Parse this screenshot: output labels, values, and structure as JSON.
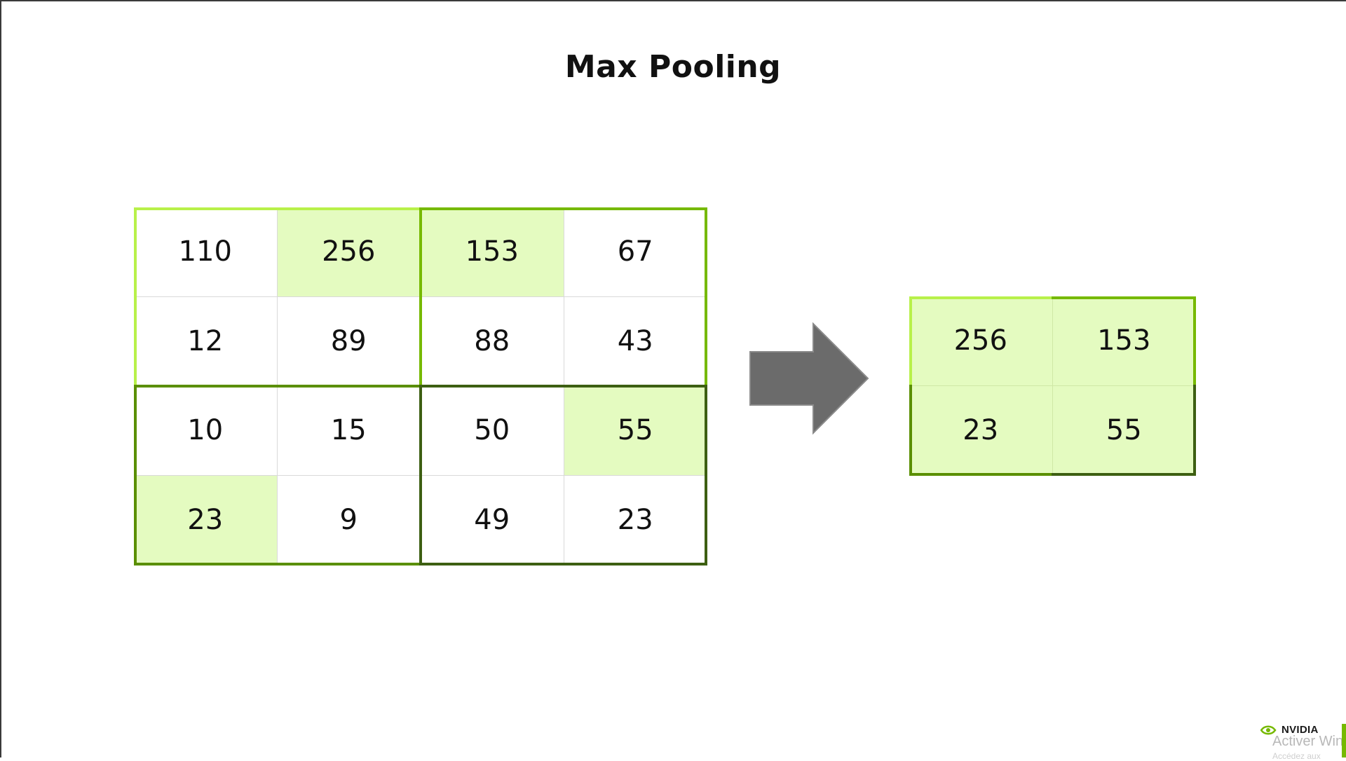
{
  "title": "Max Pooling",
  "input": {
    "rows": [
      [
        "110",
        "256",
        "153",
        "67"
      ],
      [
        "12",
        "89",
        "88",
        "43"
      ],
      [
        "10",
        "15",
        "50",
        "55"
      ],
      [
        "23",
        "9",
        "49",
        "23"
      ]
    ],
    "highlighted_max": [
      "256",
      "153",
      "55",
      "23"
    ]
  },
  "output": {
    "rows": [
      [
        "256",
        "153"
      ],
      [
        "23",
        "55"
      ]
    ]
  },
  "colors": {
    "highlight_fill": "#e4fbc0",
    "pool_top_left": "#b8f14a",
    "pool_top_right": "#76b900",
    "pool_bottom_left": "#5a8f00",
    "pool_bottom_right": "#3d5f12",
    "arrow_fill": "#6b6b6b",
    "brand_green": "#76b900"
  },
  "icons": {
    "arrow": "right-arrow-icon",
    "logo": "nvidia-logo-icon"
  },
  "logo_text": "NVIDIA",
  "watermark": {
    "line1": "Activer Win",
    "line2": "Accédez aux"
  }
}
